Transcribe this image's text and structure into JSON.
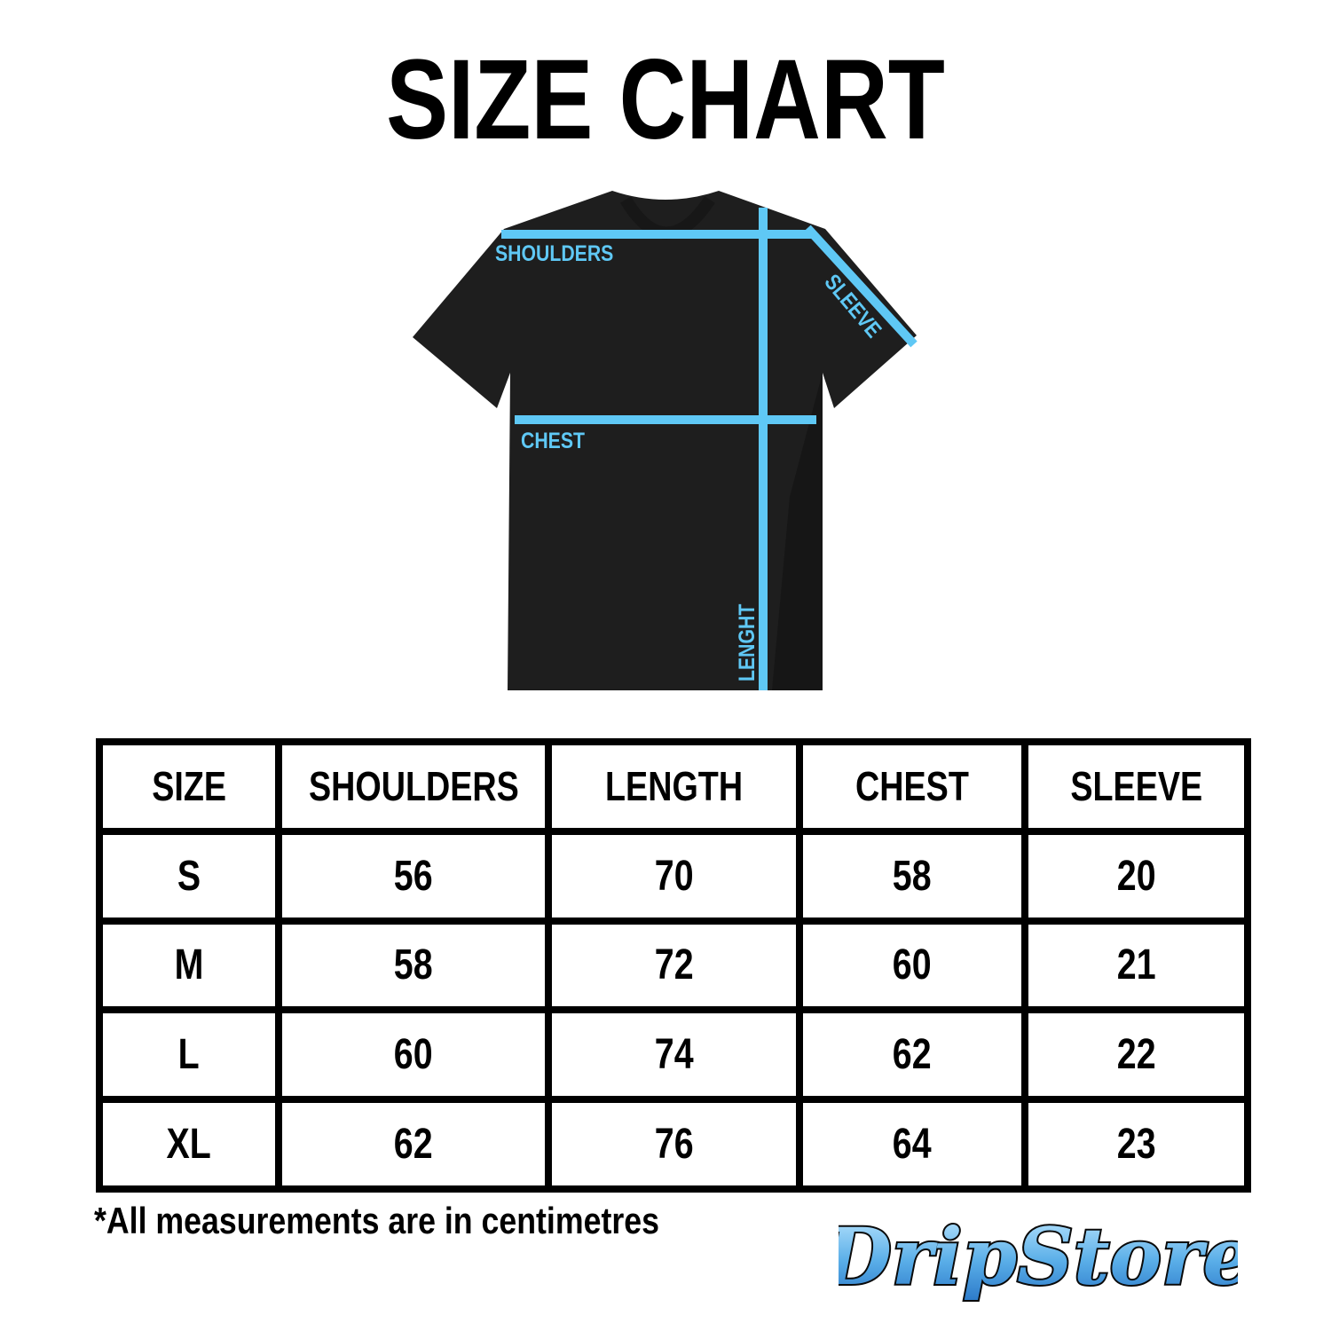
{
  "title": "SIZE CHART",
  "diagram_labels": {
    "shoulders": "SHOULDERS",
    "sleeve": "SLEEVE",
    "chest": "CHEST",
    "length": "LENGHT"
  },
  "colors": {
    "shirt": "#1e1e1e",
    "measure_line": "#5fc8f5",
    "border": "#000000"
  },
  "table": {
    "headers": [
      "SIZE",
      "SHOULDERS",
      "LENGTH",
      "CHEST",
      "SLEEVE"
    ],
    "rows": [
      [
        "S",
        "56",
        "70",
        "58",
        "20"
      ],
      [
        "M",
        "58",
        "72",
        "60",
        "21"
      ],
      [
        "L",
        "60",
        "74",
        "62",
        "22"
      ],
      [
        "XL",
        "62",
        "76",
        "64",
        "23"
      ]
    ]
  },
  "note": "*All measurements are in centimetres",
  "logo": {
    "text": "DripStore"
  }
}
